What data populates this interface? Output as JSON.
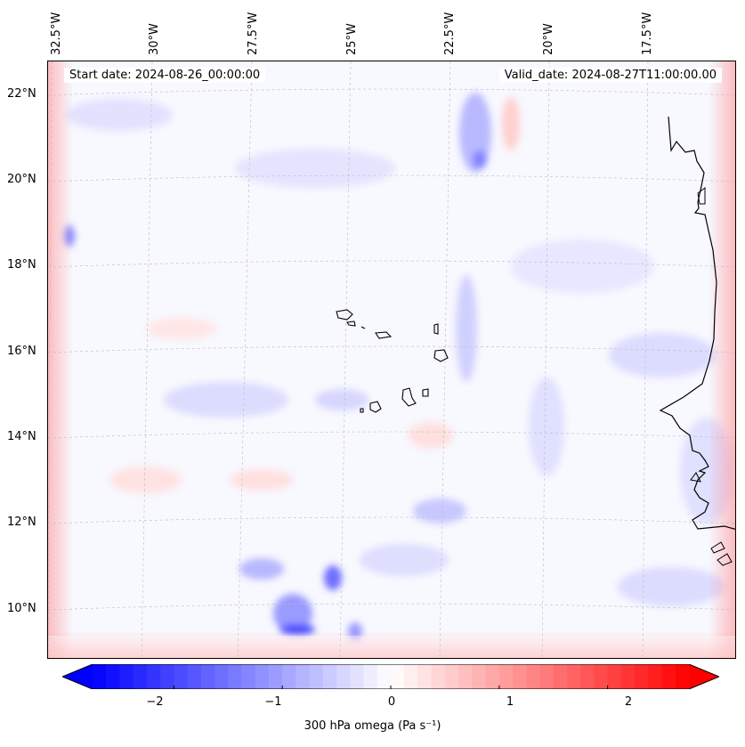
{
  "map": {
    "lon_labels": [
      "32.5°W",
      "30°W",
      "27.5°W",
      "25°W",
      "22.5°W",
      "20°W",
      "17.5°W"
    ],
    "lat_labels": [
      "22°N",
      "20°N",
      "18°N",
      "16°N",
      "14°N",
      "12°N",
      "10°N"
    ],
    "start_date": "Start date: 2024-08-26_00:00:00",
    "valid_date": "Valid_date: 2024-08-27T11:00:00.00",
    "colormap": "bwr",
    "colors": {
      "negative": "#0000ff",
      "zero": "#ffffff",
      "positive": "#ff0000",
      "coastline": "#000000"
    }
  },
  "colorbar": {
    "ticks": [
      "−2",
      "−1",
      "0",
      "1",
      "2"
    ],
    "range": [
      -2.75,
      2.75
    ],
    "label": "300 hPa omega (Pa s⁻¹)"
  }
}
